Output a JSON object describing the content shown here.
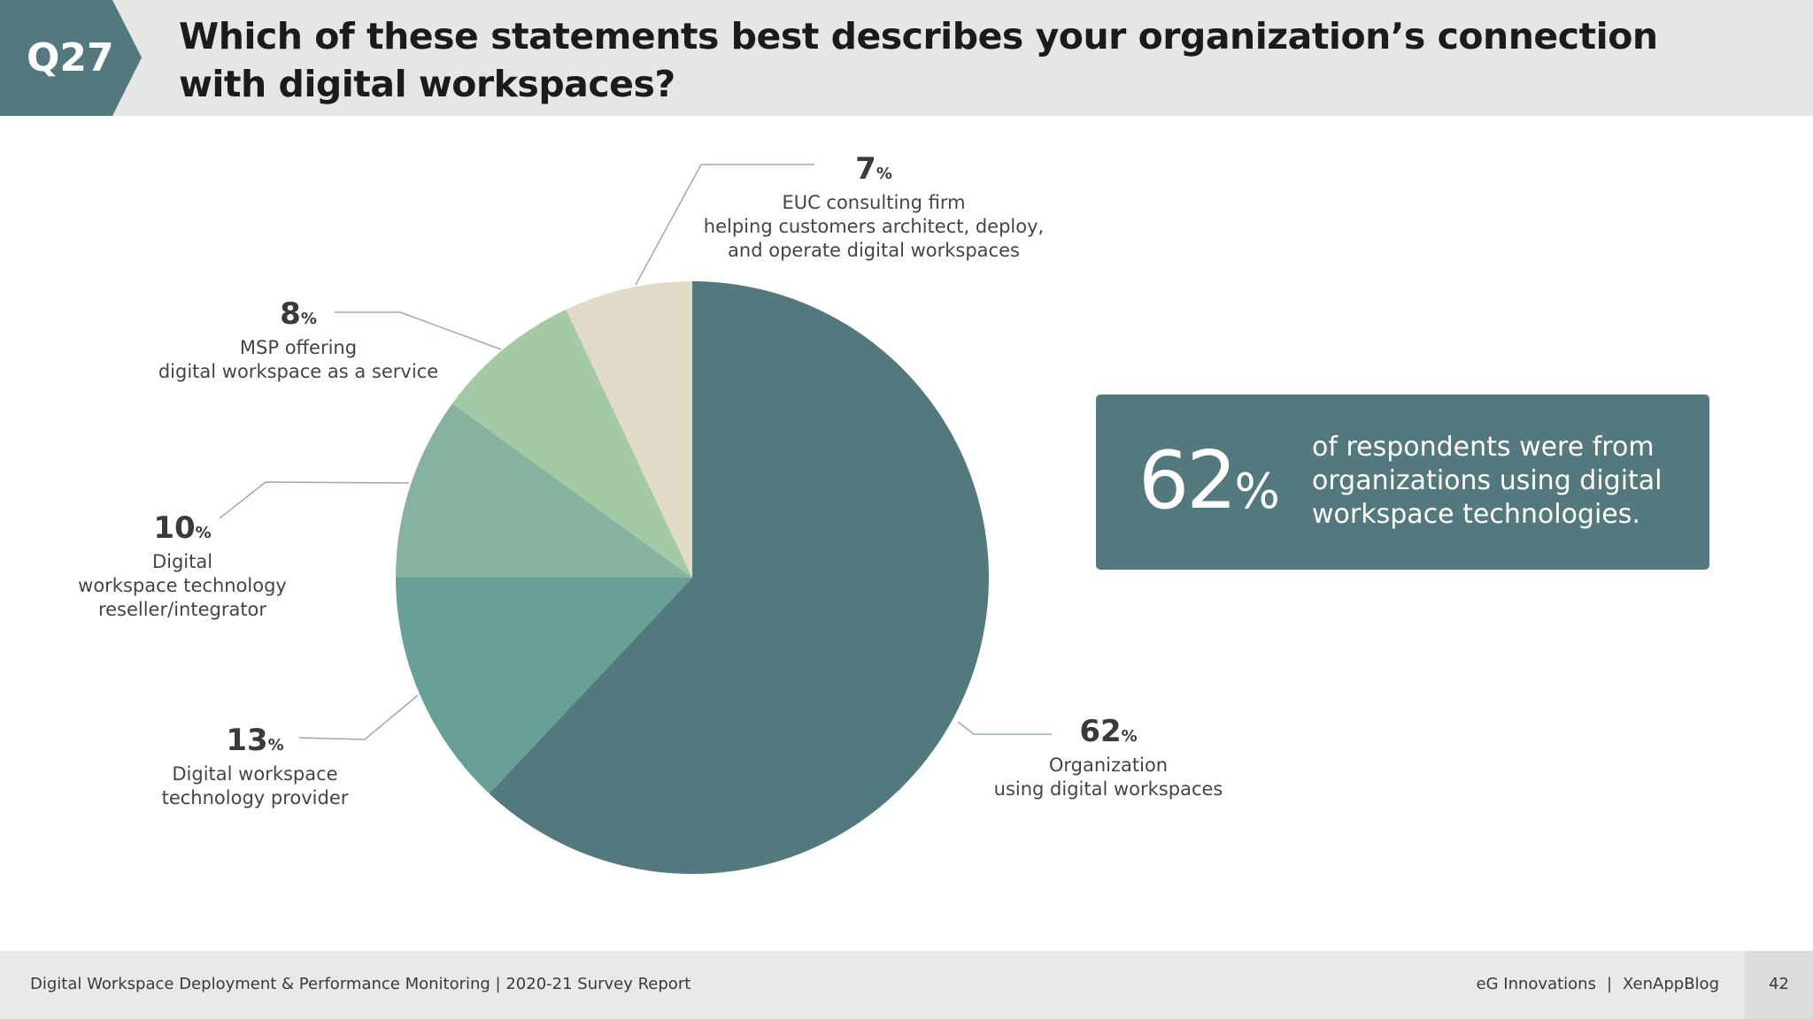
{
  "header": {
    "question_number": "Q27",
    "title": "Which of these statements best describes your organization’s connection with digital workspaces?"
  },
  "colors": {
    "badge": "#53787d",
    "header_bg": "#e6e6e6",
    "callout_bg": "#53787d"
  },
  "chart_data": {
    "type": "pie",
    "title": "Which of these statements best describes your organization’s connection with digital workspaces?",
    "start": "12 o'clock, clockwise",
    "slices": [
      {
        "id": "org",
        "value": 62,
        "pct_label": "62",
        "label_lines": [
          "Organization",
          "using digital workspaces"
        ],
        "color": "#53787d"
      },
      {
        "id": "provider",
        "value": 13,
        "pct_label": "13",
        "label_lines": [
          "Digital workspace",
          "technology provider"
        ],
        "color": "#689f97"
      },
      {
        "id": "reseller",
        "value": 10,
        "pct_label": "10",
        "label_lines": [
          "Digital",
          "workspace technology",
          "reseller/integrator"
        ],
        "color": "#85b39f"
      },
      {
        "id": "msp",
        "value": 8,
        "pct_label": "8",
        "label_lines": [
          "MSP offering",
          "digital workspace as a service"
        ],
        "color": "#a3caa4"
      },
      {
        "id": "euc",
        "value": 7,
        "pct_label": "7",
        "label_lines": [
          "EUC consulting firm",
          "helping customers architect, deploy,",
          "and operate digital workspaces"
        ],
        "color": "#e0dac7"
      }
    ],
    "percent_symbol": "%"
  },
  "callout": {
    "value": "62",
    "unit": "%",
    "text": "of respondents were from organizations using digital workspace technologies."
  },
  "footer": {
    "report": "Digital Workspace Deployment & Performance Monitoring | 2020-21 Survey Report",
    "brand1": "eG Innovations",
    "separator": "|",
    "brand2": "XenAppBlog",
    "page": "42"
  }
}
